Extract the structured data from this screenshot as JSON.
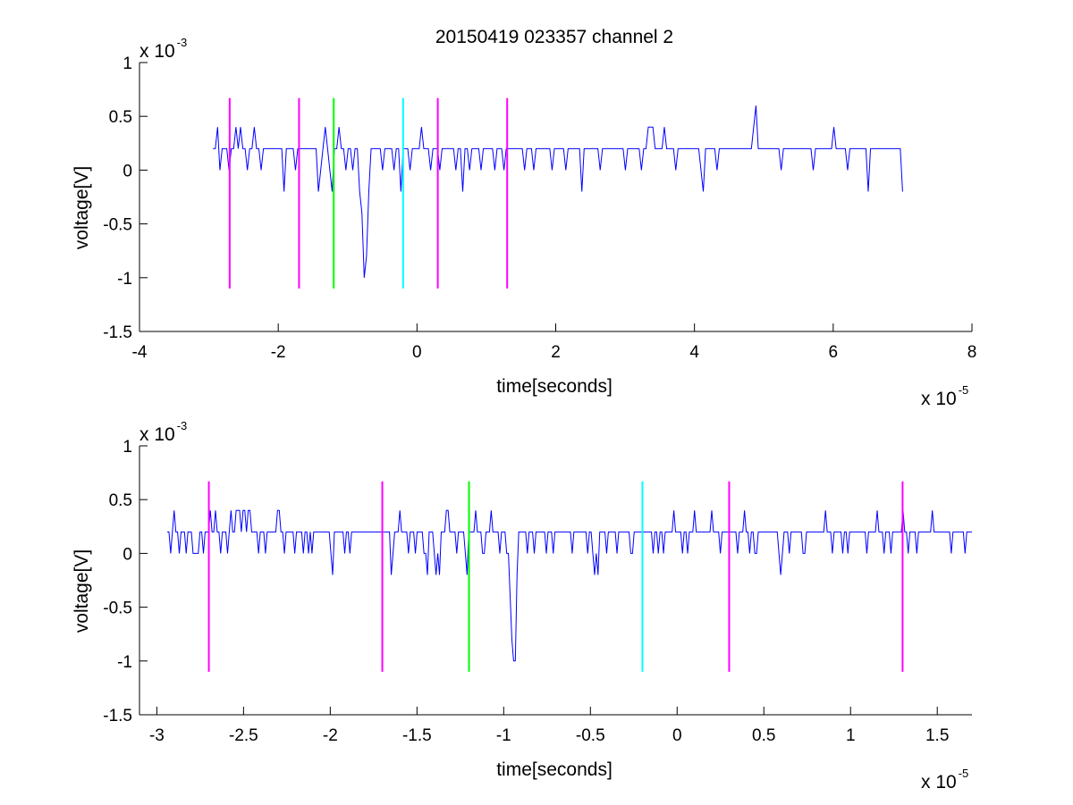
{
  "chart_data": [
    {
      "type": "line",
      "title": "20150419 023357 channel 2",
      "xlabel": "time[seconds]",
      "ylabel": "voltage[V]",
      "xlim": [
        -4e-05,
        8e-05
      ],
      "ylim": [
        -0.0015,
        0.001
      ],
      "x_ticks": [
        -4e-05,
        -2e-05,
        0,
        2e-05,
        4e-05,
        6e-05,
        8e-05
      ],
      "x_tick_labels": [
        "-4",
        "-2",
        "0",
        "2",
        "4",
        "6",
        "8"
      ],
      "y_ticks": [
        -0.0015,
        -0.001,
        -0.0005,
        0,
        0.0005,
        0.001
      ],
      "y_tick_labels": [
        "-1.5",
        "-1",
        "-0.5",
        "0",
        "0.5",
        "1"
      ],
      "x_exponent": {
        "base": "x 10",
        "power": "-5"
      },
      "y_exponent": {
        "base": "x 10",
        "power": "-3"
      },
      "grid": false,
      "series": [
        {
          "color": "#0000ff",
          "x_start": -2.94e-05,
          "x_end": 7e-05,
          "values": [
            0.0002,
            0.0002,
            0.0004,
            0,
            0.0002,
            0.0002,
            0.0002,
            0,
            0.0002,
            0.0002,
            0.0004,
            0.0002,
            0.0004,
            0.0002,
            0.0002,
            0,
            0.0002,
            0.0002,
            0.0004,
            0.0002,
            0.0002,
            0,
            0.0002,
            0.0002,
            0.0002,
            0.0002,
            0.0002,
            0.0002,
            0.0002,
            0.0002,
            0.0002,
            -0.0002,
            0.0002,
            0.0002,
            0.0002,
            0.0002,
            0,
            0.0002,
            0.0002,
            0.0002,
            0.0002,
            0.0002,
            0.0002,
            0.0002,
            0.0002,
            0.0002,
            -0.0002,
            0,
            0.0002,
            0.0004,
            0.0002,
            0,
            -0.0002,
            0.0002,
            0.0002,
            0.0004,
            0.0002,
            0.0002,
            0,
            0.0002,
            0.0002,
            0,
            0.0002,
            0.0002,
            -0.0002,
            -0.0004,
            -0.001,
            -0.0008,
            -0.0002,
            0.0002,
            0.0002,
            0.0002,
            0.0002,
            0.0002,
            0,
            0.0002,
            0.0002,
            0.0002,
            0.0002,
            0,
            0.0002,
            0.0002,
            -0.0002,
            0.0002,
            0.0002,
            0.0002,
            0,
            0.0002,
            0.0002,
            0.0002,
            0.0002,
            0.0004,
            0.0002,
            0.0002,
            0.0002,
            0,
            0.0002,
            0.0002,
            0.0002,
            0,
            0.0002,
            0.0002,
            0.0002,
            0.0002,
            0.0002,
            0.0002,
            0,
            0.0002,
            0.0002,
            -0.0002,
            0.0002,
            0.0002,
            0,
            0.0002,
            0.0002,
            0.0002,
            0.0002,
            0,
            0.0002,
            0.0002,
            0.0002,
            0.0002,
            0.0002,
            0,
            0.0002,
            0.0002,
            0.0002,
            0,
            0.0002,
            0.0002,
            0.0002,
            0.0002,
            0.0002,
            0.0002,
            0.0002,
            0.0002,
            0,
            0.0002,
            0.0002,
            0.0002,
            0,
            0.0002,
            0.0002,
            0.0002,
            0.0002,
            0.0002,
            0.0002,
            0.0002,
            0,
            0.0002,
            0.0002,
            0.0002,
            0.0002,
            0.0002,
            0,
            0.0002,
            0.0002,
            0.0002,
            0.0002,
            0.0002,
            0.0002,
            -0.0002,
            0.0002,
            0.0002,
            0.0002,
            0.0002,
            0.0002,
            0.0002,
            0.0002,
            0,
            0.0002,
            0.0002,
            0.0002,
            0.0002,
            0.0002,
            0.0002,
            0.0002,
            0.0002,
            0.0002,
            0.0002,
            0,
            0.0002,
            0.0002,
            0.0002,
            0.0002,
            0.0002,
            0.0002,
            0,
            0.0002,
            0.0002,
            0.0004,
            0.0004,
            0.0004,
            0.0002,
            0.0002,
            0.0002,
            0.0002,
            0.0004,
            0.0002,
            0.0002,
            0.0002,
            0.0002,
            0,
            0.0002,
            0.0002,
            0.0002,
            0.0002,
            0.0002,
            0.0002,
            0.0002,
            0.0002,
            0.0002,
            0.0002,
            0,
            -0.0002,
            0.0002,
            0.0002,
            0.0002,
            0.0002,
            0.0002,
            0,
            0.0002,
            0.0002,
            0.0002,
            0.0002,
            0.0002,
            0.0002,
            0.0002,
            0.0002,
            0.0002,
            0.0002,
            0.0002,
            0.0002,
            0.0002,
            0.0002,
            0.0002,
            0.0004,
            0.0006,
            0.0002,
            0.0002,
            0.0002,
            0.0002,
            0.0002,
            0.0002,
            0.0002,
            0.0002,
            0.0002,
            0.0002,
            0,
            0.0002,
            0.0002,
            0.0002,
            0.0002,
            0.0002,
            0.0002,
            0.0002,
            0.0002,
            0.0002,
            0.0002,
            0.0002,
            0.0002,
            0.0002,
            0,
            0.0002,
            0.0002,
            0.0002,
            0.0002,
            0.0002,
            0.0002,
            0.0002,
            0.0002,
            0.0004,
            0.0002,
            0.0002,
            0.0002,
            0.0002,
            0.0002,
            0,
            0.0002,
            0.0002,
            0.0002,
            0.0002,
            0.0002,
            0.0002,
            0.0002,
            0.0002,
            -0.0002,
            0.0002,
            0.0002,
            0.0002,
            0.0002,
            0.0002,
            0.0002,
            0.0002,
            0.0002,
            0.0002,
            0.0002,
            0.0002,
            0.0002,
            0.0002,
            0.0002,
            -0.0002
          ]
        }
      ],
      "vertical_markers": [
        {
          "x": -2.7e-05,
          "color": "#ff00ff",
          "y_range": [
            -0.0011,
            0.00067
          ]
        },
        {
          "x": -1.7e-05,
          "color": "#ff00ff",
          "y_range": [
            -0.0011,
            0.00067
          ]
        },
        {
          "x": -1.2e-05,
          "color": "#00ff00",
          "y_range": [
            -0.0011,
            0.00067
          ]
        },
        {
          "x": -2e-06,
          "color": "#00ffff",
          "y_range": [
            -0.0011,
            0.00067
          ]
        },
        {
          "x": 3e-06,
          "color": "#ff00ff",
          "y_range": [
            -0.0011,
            0.00067
          ]
        },
        {
          "x": 1.3e-05,
          "color": "#ff00ff",
          "y_range": [
            -0.0011,
            0.00067
          ]
        }
      ]
    },
    {
      "type": "line",
      "title": "",
      "xlabel": "time[seconds]",
      "ylabel": "voltage[V]",
      "xlim": [
        -3.1e-05,
        1.7e-05
      ],
      "ylim": [
        -0.0015,
        0.001
      ],
      "x_ticks": [
        -3e-05,
        -2.5e-05,
        -2e-05,
        -1.5e-05,
        -1e-05,
        -5e-06,
        0,
        5e-06,
        1e-05,
        1.5e-05
      ],
      "x_tick_labels": [
        "-3",
        "-2.5",
        "-2",
        "-1.5",
        "-1",
        "-0.5",
        "0",
        "0.5",
        "1",
        "1.5"
      ],
      "y_ticks": [
        -0.0015,
        -0.001,
        -0.0005,
        0,
        0.0005,
        0.001
      ],
      "y_tick_labels": [
        "-1.5",
        "-1",
        "-0.5",
        "0",
        "0.5",
        "1"
      ],
      "x_exponent": {
        "base": "x 10",
        "power": "-5"
      },
      "y_exponent": {
        "base": "x 10",
        "power": "-3"
      },
      "grid": false,
      "series": [
        {
          "color": "#0000ff",
          "x_start": -2.94e-05,
          "x_end": 1.7e-05,
          "values": [
            0.0002,
            0.0002,
            0,
            0.0002,
            0.0004,
            0.0002,
            0.0002,
            0,
            0.0002,
            0.0002,
            0.0002,
            0,
            0.0002,
            0.0002,
            0.0002,
            0,
            0,
            0,
            0,
            0.0002,
            0.0002,
            0,
            0.0002,
            0.0002,
            0.0002,
            0.0004,
            0.0002,
            0.0002,
            0.0004,
            0.0002,
            0.0002,
            0,
            0.0002,
            0.0002,
            0.0002,
            0,
            0.0002,
            0.0004,
            0.0002,
            0.0002,
            0.0004,
            0.0004,
            0.0004,
            0.0002,
            0.0004,
            0.0004,
            0.0002,
            0.0004,
            0.0004,
            0.0002,
            0.0002,
            0.0002,
            0.0002,
            0,
            0.0002,
            0.0002,
            0.0002,
            0,
            0.0002,
            0.0002,
            0.0002,
            0.0002,
            0.0002,
            0.0002,
            0.0004,
            0.0004,
            0.0002,
            0.0002,
            0,
            0.0002,
            0.0002,
            0.0002,
            0.0002,
            0.0002,
            0,
            0.0002,
            0.0002,
            0.0002,
            0.0002,
            0,
            0.0002,
            0.0002,
            0,
            0.0002,
            0,
            0.0002,
            0.0002,
            0.0002,
            0.0002,
            0.0002,
            0.0002,
            0.0002,
            0.0002,
            0.0002,
            0.0002,
            0,
            -0.0002,
            0.0002,
            0.0002,
            0.0002,
            0.0002,
            0.0002,
            0.0002,
            0,
            0.0002,
            0.0002,
            0,
            0.0002,
            0.0002,
            0.0002,
            0.0002,
            0.0002,
            0.0002,
            0.0002,
            0.0002,
            0.0002,
            0.0002,
            0.0002,
            0.0002,
            0.0002,
            0.0002,
            0.0002,
            0.0002,
            0.0002,
            0.0002,
            0.0002,
            0.0002,
            0.0002,
            0.0002,
            0.0002,
            -0.0002,
            0,
            0.0002,
            0.0002,
            0.0002,
            0.0004,
            0.0002,
            0.0002,
            0.0002,
            0.0002,
            0,
            0.0002,
            0.0002,
            0.0002,
            0,
            0.0002,
            0.0002,
            0.0002,
            0.0002,
            0,
            0,
            -0.0002,
            0.0002,
            0.0002,
            0.0002,
            0,
            -0.0002,
            0,
            -0.0002,
            0.0002,
            0.0002,
            0.0002,
            0.0004,
            0.0004,
            0.0002,
            0.0002,
            0.0002,
            0.0002,
            0,
            0.0002,
            0.0002,
            0.0002,
            0.0002,
            0,
            -0.0002,
            0.0002,
            0.0002,
            0.0002,
            0.0002,
            0.0004,
            0.0002,
            0.0002,
            0.0002,
            0,
            0,
            0.0002,
            0.0002,
            0.0002,
            0.0004,
            0.0002,
            0.0002,
            0.0002,
            0.0002,
            0,
            0.0002,
            0.0002,
            0.0002,
            0,
            0,
            -0.0004,
            -0.0008,
            -0.001,
            -0.001,
            -0.0002,
            0.0002,
            0.0002,
            0.0002,
            0.0002,
            0.0002,
            0,
            0.0002,
            0.0002,
            0.0002,
            0,
            0.0002,
            0.0002,
            0.0002,
            0.0002,
            0.0002,
            0.0002,
            0,
            0.0002,
            0.0002,
            0.0002,
            0,
            0.0002,
            0.0002,
            0.0002,
            0.0002,
            0.0002,
            0.0002,
            0.0002,
            0.0002,
            0.0002,
            0.0002,
            0,
            0.0002,
            0.0002,
            0.0002,
            0.0002,
            0.0002,
            0.0002,
            0.0002,
            0.0002,
            0,
            0.0002,
            0.0002,
            0,
            -0.0002,
            0,
            -0.0002,
            0.0002,
            0.0002,
            0.0002,
            0.0002,
            0,
            0.0002,
            0.0002,
            0.0002,
            0.0002,
            0.0002,
            0,
            0.0002,
            0.0002,
            0.0002,
            0.0002,
            0.0002,
            0.0002,
            0.0002,
            0,
            0,
            0.0002,
            0.0002,
            0.0002,
            0.0002,
            0.0002,
            0.0002,
            0.0002,
            0.0002,
            0.0002,
            0.0002,
            0.0002,
            0,
            0.0002,
            0.0002,
            0,
            0.0002,
            0.0002,
            0,
            0.0002,
            0.0002,
            0.0002,
            0.0002,
            0.0002,
            0.0004,
            0.0002,
            0.0002,
            0.0002,
            0.0002,
            0,
            0.0002,
            0.0002,
            0,
            0.0002,
            0.0002,
            0.0002,
            0.0004,
            0.0002,
            0.0002,
            0.0002,
            0.0002,
            0.0002,
            0.0002,
            0.0002,
            0.0002,
            0.0002,
            0.0004,
            0.0002,
            0.0002,
            0.0002,
            0.0002,
            0,
            0.0002,
            0.0002,
            0.0002,
            0.0002,
            0.0002,
            0.0002,
            0.0002,
            0.0002,
            0.0002,
            0,
            0.0002,
            0.0002,
            0.0002,
            0.0004,
            0.0002,
            0.0002,
            0,
            0.0002,
            0.0002,
            0,
            0,
            0.0002,
            0.0002,
            0.0002,
            0.0002,
            0.0002,
            0.0002,
            0.0002,
            0.0002,
            0.0002,
            0.0002,
            0.0002,
            0.0002,
            0,
            -0.0002,
            0,
            0.0002,
            0.0002,
            0.0002,
            0,
            0.0002,
            0.0002,
            0.0002,
            0.0002,
            0.0002,
            0.0002,
            0.0002,
            0,
            0,
            0.0002,
            0.0002,
            0.0002,
            0.0002,
            0.0002,
            0.0002,
            0.0002,
            0.0002,
            0.0002,
            0.0002,
            0.0002,
            0.0004,
            0.0002,
            0.0002,
            0.0002,
            0,
            0.0002,
            0.0002,
            0.0002,
            0.0002,
            0.0002,
            0,
            0.0002,
            0.0002,
            0,
            0.0002,
            0.0002,
            0.0002,
            0.0002,
            0.0002,
            0.0002,
            0.0002,
            0.0002,
            0.0002,
            0.0002,
            0,
            0.0002,
            0.0002,
            0.0002,
            0.0002,
            0.0002,
            0.0004,
            0.0002,
            0.0002,
            0.0002,
            0,
            0.0002,
            0.0002,
            0.0002,
            0,
            0.0002,
            0.0002,
            0.0002,
            0.0002,
            0.0002,
            0.0002,
            0.0004,
            0.0002,
            0.0002,
            0,
            0.0002,
            0.0002,
            0.0002,
            0.0002,
            0,
            0.0002,
            0.0002,
            0.0002,
            0.0002,
            0.0002,
            0.0002,
            0.0002,
            0.0002,
            0.0004,
            0.0002,
            0.0002,
            0.0002,
            0.0002,
            0.0002,
            0.0002,
            0.0002,
            0.0002,
            0.0002,
            0.0002,
            0,
            0.0002,
            0.0002,
            0.0002,
            0.0002,
            0.0002,
            0.0002,
            0.0002,
            0,
            0.0002,
            0.0002,
            0.0002,
            0.0002
          ]
        }
      ],
      "vertical_markers": [
        {
          "x": -2.7e-05,
          "color": "#ff00ff",
          "y_range": [
            -0.0011,
            0.00067
          ]
        },
        {
          "x": -1.7e-05,
          "color": "#ff00ff",
          "y_range": [
            -0.0011,
            0.00067
          ]
        },
        {
          "x": -1.2e-05,
          "color": "#00ff00",
          "y_range": [
            -0.0011,
            0.00067
          ]
        },
        {
          "x": -2e-06,
          "color": "#00ffff",
          "y_range": [
            -0.0011,
            0.00067
          ]
        },
        {
          "x": 3e-06,
          "color": "#ff00ff",
          "y_range": [
            -0.0011,
            0.00067
          ]
        },
        {
          "x": 1.3e-05,
          "color": "#ff00ff",
          "y_range": [
            -0.0011,
            0.00067
          ]
        }
      ]
    }
  ]
}
